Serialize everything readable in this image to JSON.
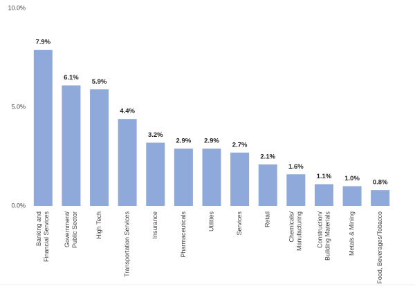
{
  "chart_data": {
    "type": "bar",
    "categories": [
      [
        "Banking and",
        "Financial Services"
      ],
      [
        "Government/",
        "Public Sector"
      ],
      [
        "High Tech"
      ],
      [
        "Transportation Services"
      ],
      [
        "Insurance"
      ],
      [
        "Pharmaceuticals"
      ],
      [
        "Utilities"
      ],
      [
        "Services"
      ],
      [
        "Retail"
      ],
      [
        "Chemicals/",
        "Manufacturing"
      ],
      [
        "Construction/",
        "Building Materials"
      ],
      [
        "Metals & Mining"
      ],
      [
        "Food, Beverages/Tobacco"
      ]
    ],
    "values": [
      7.9,
      6.1,
      5.9,
      4.4,
      3.2,
      2.9,
      2.9,
      2.7,
      2.1,
      1.6,
      1.1,
      1.0,
      0.8
    ],
    "value_labels": [
      "7.9%",
      "6.1%",
      "5.9%",
      "4.4%",
      "3.2%",
      "2.9%",
      "2.9%",
      "2.7%",
      "2.1%",
      "1.6%",
      "1.1%",
      "1.0%",
      "0.8%"
    ],
    "color": "#8fa9da",
    "ylim": [
      0,
      10
    ],
    "yticks": [
      {
        "value": 0,
        "label": "0.0%"
      },
      {
        "value": 5,
        "label": "5.0%"
      },
      {
        "value": 10,
        "label": "10.0%"
      }
    ],
    "grid": false
  }
}
